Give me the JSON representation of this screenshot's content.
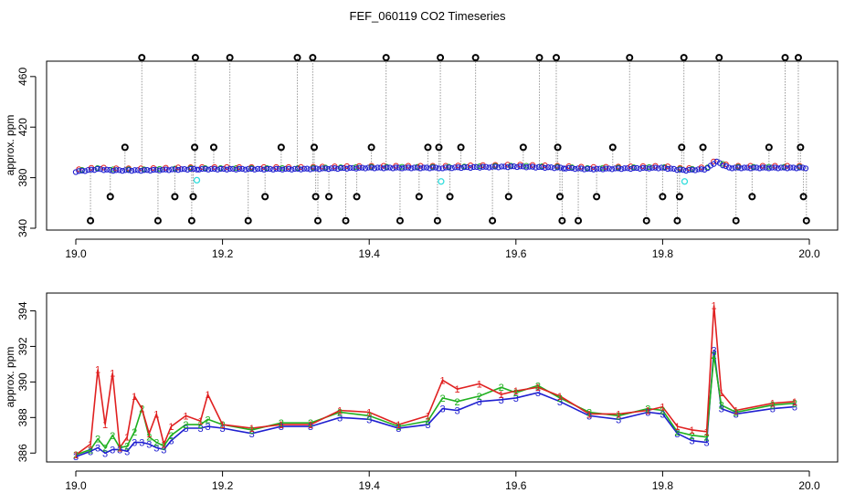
{
  "title": "FEF_060119  CO2 Timeseries",
  "colors": {
    "primary": "#000000",
    "series1": "#e02020",
    "series2": "#20b020",
    "series3": "#1f1fd0",
    "flagged": "#33dddd",
    "connector": "#9a9a9a"
  },
  "chart_data": [
    {
      "type": "scatter",
      "ylabel": "approx. ppm",
      "xlim": [
        19.0,
        20.0
      ],
      "ylim": [
        340,
        470
      ],
      "xticks": [
        {
          "value": 19.0,
          "label": "19.0"
        },
        {
          "value": 19.2,
          "label": "19.2"
        },
        {
          "value": 19.4,
          "label": "19.4"
        },
        {
          "value": 19.6,
          "label": "19.6"
        },
        {
          "value": 19.8,
          "label": "19.8"
        },
        {
          "value": 20.0,
          "label": "20.0"
        }
      ],
      "yticks": [
        {
          "value": 340,
          "label": "340"
        },
        {
          "value": 380,
          "label": "380"
        },
        {
          "value": 420,
          "label": "420"
        },
        {
          "value": 460,
          "label": "460"
        }
      ],
      "baseline_segments": [
        [
          19.0,
          19.165
        ],
        [
          19.168,
          19.328
        ],
        [
          19.332,
          19.495
        ],
        [
          19.5,
          19.665
        ],
        [
          19.668,
          19.828
        ],
        [
          19.832,
          19.995
        ]
      ],
      "baseline_points": [
        {
          "x": 19.0,
          "y": 385
        },
        {
          "x": 19.03,
          "y": 387
        },
        {
          "x": 19.05,
          "y": 386
        },
        {
          "x": 19.09,
          "y": 386
        },
        {
          "x": 19.16,
          "y": 387
        },
        {
          "x": 19.2,
          "y": 387
        },
        {
          "x": 19.3,
          "y": 387
        },
        {
          "x": 19.4,
          "y": 388
        },
        {
          "x": 19.5,
          "y": 388
        },
        {
          "x": 19.6,
          "y": 389
        },
        {
          "x": 19.66,
          "y": 388
        },
        {
          "x": 19.7,
          "y": 387
        },
        {
          "x": 19.8,
          "y": 388
        },
        {
          "x": 19.83,
          "y": 386
        },
        {
          "x": 19.86,
          "y": 387
        },
        {
          "x": 19.873,
          "y": 393
        },
        {
          "x": 19.89,
          "y": 388
        },
        {
          "x": 19.995,
          "y": 388
        }
      ],
      "flagged_points": [
        {
          "x": 19.165,
          "y": 378
        },
        {
          "x": 19.498,
          "y": 377
        },
        {
          "x": 19.83,
          "y": 377
        }
      ],
      "outliers": [
        {
          "x": 19.02,
          "y": 346
        },
        {
          "x": 19.047,
          "y": 365
        },
        {
          "x": 19.067,
          "y": 404
        },
        {
          "x": 19.09,
          "y": 475
        },
        {
          "x": 19.112,
          "y": 346
        },
        {
          "x": 19.135,
          "y": 365
        },
        {
          "x": 19.158,
          "y": 346
        },
        {
          "x": 19.16,
          "y": 365
        },
        {
          "x": 19.162,
          "y": 404
        },
        {
          "x": 19.163,
          "y": 475
        },
        {
          "x": 19.188,
          "y": 404
        },
        {
          "x": 19.21,
          "y": 475
        },
        {
          "x": 19.235,
          "y": 346
        },
        {
          "x": 19.258,
          "y": 365
        },
        {
          "x": 19.28,
          "y": 404
        },
        {
          "x": 19.302,
          "y": 475
        },
        {
          "x": 19.323,
          "y": 475
        },
        {
          "x": 19.325,
          "y": 404
        },
        {
          "x": 19.327,
          "y": 365
        },
        {
          "x": 19.33,
          "y": 346
        },
        {
          "x": 19.345,
          "y": 365
        },
        {
          "x": 19.368,
          "y": 346
        },
        {
          "x": 19.383,
          "y": 365
        },
        {
          "x": 19.403,
          "y": 404
        },
        {
          "x": 19.423,
          "y": 475
        },
        {
          "x": 19.442,
          "y": 346
        },
        {
          "x": 19.468,
          "y": 365
        },
        {
          "x": 19.48,
          "y": 404
        },
        {
          "x": 19.493,
          "y": 346
        },
        {
          "x": 19.495,
          "y": 404
        },
        {
          "x": 19.497,
          "y": 475
        },
        {
          "x": 19.51,
          "y": 365
        },
        {
          "x": 19.525,
          "y": 404
        },
        {
          "x": 19.545,
          "y": 475
        },
        {
          "x": 19.568,
          "y": 346
        },
        {
          "x": 19.59,
          "y": 365
        },
        {
          "x": 19.61,
          "y": 404
        },
        {
          "x": 19.632,
          "y": 475
        },
        {
          "x": 19.655,
          "y": 475
        },
        {
          "x": 19.657,
          "y": 404
        },
        {
          "x": 19.66,
          "y": 365
        },
        {
          "x": 19.663,
          "y": 346
        },
        {
          "x": 19.685,
          "y": 346
        },
        {
          "x": 19.71,
          "y": 365
        },
        {
          "x": 19.732,
          "y": 404
        },
        {
          "x": 19.755,
          "y": 475
        },
        {
          "x": 19.778,
          "y": 346
        },
        {
          "x": 19.8,
          "y": 365
        },
        {
          "x": 19.82,
          "y": 346
        },
        {
          "x": 19.823,
          "y": 365
        },
        {
          "x": 19.826,
          "y": 404
        },
        {
          "x": 19.829,
          "y": 475
        },
        {
          "x": 19.855,
          "y": 404
        },
        {
          "x": 19.877,
          "y": 475
        },
        {
          "x": 19.9,
          "y": 346
        },
        {
          "x": 19.922,
          "y": 365
        },
        {
          "x": 19.945,
          "y": 404
        },
        {
          "x": 19.967,
          "y": 475
        },
        {
          "x": 19.985,
          "y": 475
        },
        {
          "x": 19.988,
          "y": 404
        },
        {
          "x": 19.992,
          "y": 365
        },
        {
          "x": 19.996,
          "y": 346
        }
      ]
    },
    {
      "type": "line",
      "ylabel": "approx. ppm",
      "xlim": [
        19.0,
        20.0
      ],
      "ylim": [
        385.5,
        395.0
      ],
      "xticks": [
        {
          "value": 19.0,
          "label": "19.0"
        },
        {
          "value": 19.2,
          "label": "19.2"
        },
        {
          "value": 19.4,
          "label": "19.4"
        },
        {
          "value": 19.6,
          "label": "19.6"
        },
        {
          "value": 19.8,
          "label": "19.8"
        },
        {
          "value": 20.0,
          "label": "20.0"
        }
      ],
      "yticks": [
        {
          "value": 386,
          "label": "386"
        },
        {
          "value": 388,
          "label": "388"
        },
        {
          "value": 390,
          "label": "390"
        },
        {
          "value": 392,
          "label": "392"
        },
        {
          "value": 394,
          "label": "394"
        }
      ],
      "x": [
        19.0,
        19.02,
        19.03,
        19.04,
        19.05,
        19.06,
        19.07,
        19.08,
        19.09,
        19.1,
        19.11,
        19.12,
        19.13,
        19.15,
        19.17,
        19.18,
        19.2,
        19.24,
        19.28,
        19.32,
        19.36,
        19.4,
        19.44,
        19.48,
        19.5,
        19.52,
        19.55,
        19.58,
        19.6,
        19.63,
        19.66,
        19.7,
        19.74,
        19.78,
        19.8,
        19.82,
        19.84,
        19.86,
        19.87,
        19.88,
        19.9,
        19.95,
        19.98
      ],
      "series": [
        {
          "values": [
            385.9,
            386.5,
            390.7,
            387.6,
            390.5,
            386.3,
            386.9,
            389.2,
            388.5,
            387.1,
            388.2,
            386.5,
            387.5,
            388.1,
            387.8,
            389.3,
            387.6,
            387.4,
            387.6,
            387.6,
            388.4,
            388.3,
            387.6,
            388.1,
            390.1,
            389.6,
            389.9,
            389.3,
            389.5,
            389.7,
            389.2,
            388.2,
            388.2,
            388.4,
            388.6,
            387.5,
            387.3,
            387.2,
            394.3,
            389.4,
            388.4,
            388.8,
            388.9
          ]
        },
        {
          "values": [
            385.9,
            386.2,
            386.8,
            386.3,
            387.0,
            386.3,
            386.4,
            387.2,
            388.5,
            386.9,
            386.6,
            386.4,
            387.0,
            387.6,
            387.6,
            387.9,
            387.6,
            387.3,
            387.7,
            387.7,
            388.3,
            388.1,
            387.5,
            387.8,
            389.1,
            388.9,
            389.2,
            389.7,
            389.4,
            389.8,
            389.1,
            388.3,
            388.1,
            388.5,
            388.4,
            387.2,
            387.0,
            386.9,
            391.5,
            388.7,
            388.3,
            388.7,
            388.8
          ]
        },
        {
          "values": [
            385.8,
            386.1,
            386.3,
            386.0,
            386.2,
            386.2,
            386.1,
            386.6,
            386.6,
            386.5,
            386.3,
            386.2,
            386.7,
            387.4,
            387.4,
            387.5,
            387.4,
            387.1,
            387.5,
            387.5,
            388.0,
            387.9,
            387.4,
            387.6,
            388.5,
            388.4,
            388.9,
            389.0,
            389.1,
            389.4,
            388.9,
            388.1,
            387.9,
            388.3,
            388.2,
            387.1,
            386.7,
            386.6,
            391.8,
            388.5,
            388.2,
            388.5,
            388.6
          ]
        }
      ]
    }
  ]
}
